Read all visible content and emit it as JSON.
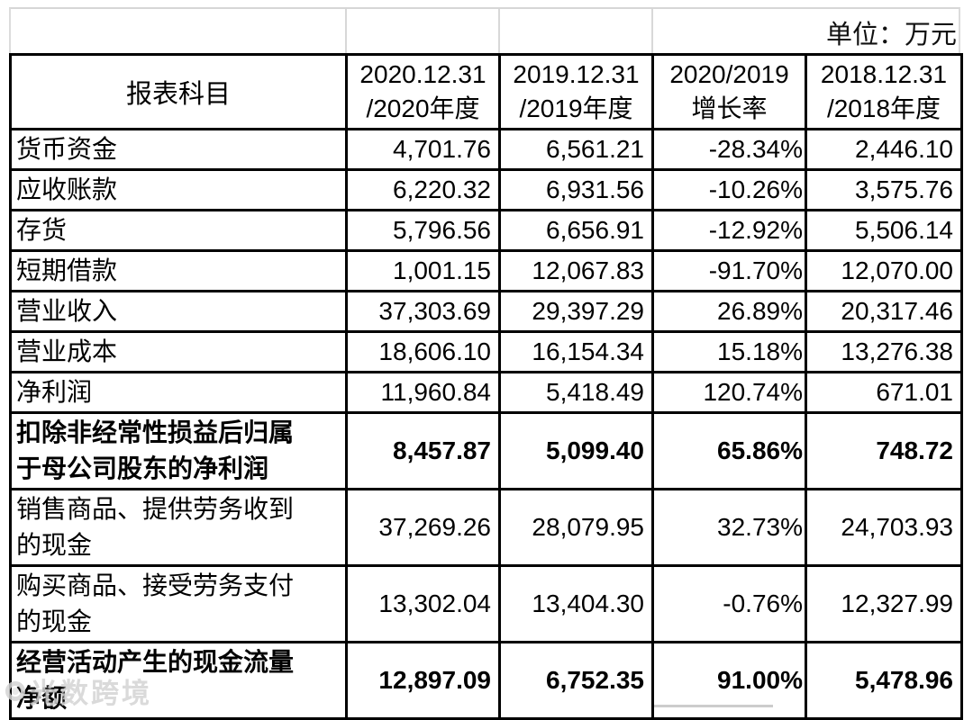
{
  "unit_label": "单位：万元",
  "watermark": {
    "text": "光数跨境"
  },
  "table": {
    "subject_header": "报表科目",
    "period_headers": [
      {
        "line1": "2020.12.31",
        "line2": "/2020年度"
      },
      {
        "line1": "2019.12.31",
        "line2": "/2019年度"
      },
      {
        "line1": "2020/2019",
        "line2": "增长率"
      },
      {
        "line1": "2018.12.31",
        "line2": "/2018年度"
      }
    ],
    "rows": [
      {
        "label": "货币资金",
        "values": [
          "4,701.76",
          "6,561.21",
          "-28.34%",
          "2,446.10"
        ],
        "bold": false,
        "tall": false
      },
      {
        "label": "应收账款",
        "values": [
          "6,220.32",
          "6,931.56",
          "-10.26%",
          "3,575.76"
        ],
        "bold": false,
        "tall": false
      },
      {
        "label": "存货",
        "values": [
          "5,796.56",
          "6,656.91",
          "-12.92%",
          "5,506.14"
        ],
        "bold": false,
        "tall": false
      },
      {
        "label": "短期借款",
        "values": [
          "1,001.15",
          "12,067.83",
          "-91.70%",
          "12,070.00"
        ],
        "bold": false,
        "tall": false
      },
      {
        "label": "营业收入",
        "values": [
          "37,303.69",
          "29,397.29",
          "26.89%",
          "20,317.46"
        ],
        "bold": false,
        "tall": false
      },
      {
        "label": "营业成本",
        "values": [
          "18,606.10",
          "16,154.34",
          "15.18%",
          "13,276.38"
        ],
        "bold": false,
        "tall": false
      },
      {
        "label": "净利润",
        "values": [
          "11,960.84",
          "5,418.49",
          "120.74%",
          "671.01"
        ],
        "bold": false,
        "tall": false
      },
      {
        "label": "扣除非经常性损益后归属\n于母公司股东的净利润",
        "values": [
          "8,457.87",
          "5,099.40",
          "65.86%",
          "748.72"
        ],
        "bold": true,
        "tall": true
      },
      {
        "label": "销售商品、提供劳务收到\n的现金",
        "values": [
          "37,269.26",
          "28,079.95",
          "32.73%",
          "24,703.93"
        ],
        "bold": false,
        "tall": true
      },
      {
        "label": "购买商品、接受劳务支付\n的现金",
        "values": [
          "13,302.04",
          "13,404.30",
          "-0.76%",
          "12,327.99"
        ],
        "bold": false,
        "tall": true
      },
      {
        "label": "经营活动产生的现金流量\n净额",
        "values": [
          "12,897.09",
          "6,752.35",
          "91.00%",
          "5,478.96"
        ],
        "bold": true,
        "tall": true
      }
    ]
  }
}
